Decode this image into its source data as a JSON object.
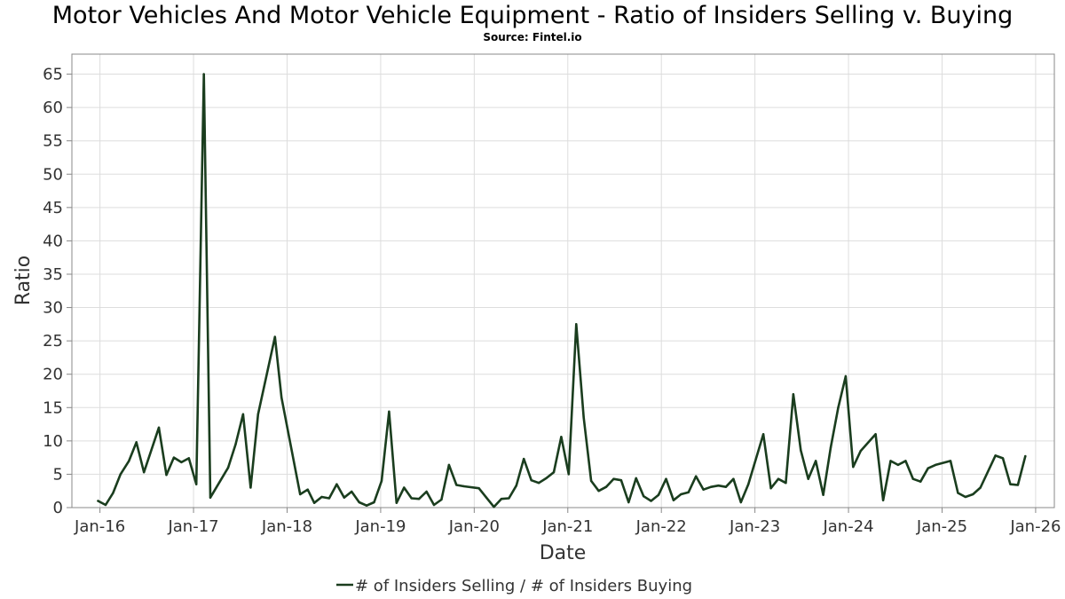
{
  "chart_data": {
    "type": "line",
    "title": "Motor Vehicles And Motor Vehicle Equipment - Ratio of Insiders Selling v. Buying",
    "subtitle": "Source: Fintel.io",
    "xlabel": "Date",
    "ylabel": "Ratio",
    "xlim": [
      2015.7,
      2026.2
    ],
    "ylim": [
      0,
      68
    ],
    "yticks": [
      0,
      5,
      10,
      15,
      20,
      25,
      30,
      35,
      40,
      45,
      50,
      55,
      60,
      65
    ],
    "xticks": [
      {
        "label": "Jan-16",
        "value": 2016.0
      },
      {
        "label": "Jan-17",
        "value": 2017.0
      },
      {
        "label": "Jan-18",
        "value": 2018.0
      },
      {
        "label": "Jan-19",
        "value": 2019.0
      },
      {
        "label": "Jan-20",
        "value": 2020.0
      },
      {
        "label": "Jan-21",
        "value": 2021.0
      },
      {
        "label": "Jan-22",
        "value": 2022.0
      },
      {
        "label": "Jan-23",
        "value": 2023.0
      },
      {
        "label": "Jan-24",
        "value": 2024.0
      },
      {
        "label": "Jan-25",
        "value": 2025.0
      },
      {
        "label": "Jan-26",
        "value": 2026.0
      }
    ],
    "grid": true,
    "legend_position": "bottom-center",
    "series": [
      {
        "name": "# of Insiders Selling / # of Insiders Buying",
        "color": "#1a3d1e",
        "x": [
          2015.98,
          2016.06,
          2016.14,
          2016.22,
          2016.31,
          2016.39,
          2016.47,
          2016.63,
          2016.71,
          2016.79,
          2016.87,
          2016.95,
          2017.03,
          2017.11,
          2017.18,
          2017.37,
          2017.45,
          2017.53,
          2017.61,
          2017.69,
          2017.87,
          2017.94,
          2018.14,
          2018.22,
          2018.29,
          2018.37,
          2018.45,
          2018.53,
          2018.61,
          2018.69,
          2018.77,
          2018.85,
          2018.93,
          2019.01,
          2019.09,
          2019.17,
          2019.25,
          2019.33,
          2019.41,
          2019.49,
          2019.57,
          2019.65,
          2019.73,
          2019.81,
          2019.89,
          2020.05,
          2020.13,
          2020.21,
          2020.29,
          2020.37,
          2020.45,
          2020.53,
          2020.61,
          2020.69,
          2020.77,
          2020.85,
          2020.93,
          2021.01,
          2021.09,
          2021.17,
          2021.25,
          2021.33,
          2021.41,
          2021.49,
          2021.57,
          2021.65,
          2021.73,
          2021.81,
          2021.89,
          2021.97,
          2022.05,
          2022.13,
          2022.21,
          2022.29,
          2022.37,
          2022.45,
          2022.53,
          2022.61,
          2022.69,
          2022.77,
          2022.85,
          2022.93,
          2023.09,
          2023.17,
          2023.25,
          2023.33,
          2023.41,
          2023.49,
          2023.57,
          2023.65,
          2023.73,
          2023.81,
          2023.89,
          2023.97,
          2024.05,
          2024.13,
          2024.29,
          2024.37,
          2024.45,
          2024.53,
          2024.61,
          2024.69,
          2024.77,
          2024.85,
          2024.93,
          2025.09,
          2025.17,
          2025.25,
          2025.33,
          2025.41,
          2025.57,
          2025.65,
          2025.73,
          2025.81,
          2025.89
        ],
        "y": [
          1.0,
          0.4,
          2.2,
          5.0,
          7.0,
          9.8,
          5.3,
          12.0,
          4.9,
          7.5,
          6.8,
          7.4,
          3.5,
          65.0,
          1.5,
          6.0,
          9.5,
          14.0,
          3.0,
          14.0,
          25.6,
          16.5,
          2.0,
          2.7,
          0.7,
          1.6,
          1.4,
          3.5,
          1.5,
          2.4,
          0.8,
          0.3,
          0.8,
          4.0,
          14.4,
          0.7,
          3.0,
          1.4,
          1.3,
          2.4,
          0.4,
          1.2,
          6.4,
          3.4,
          3.2,
          2.9,
          1.5,
          0.1,
          1.3,
          1.4,
          3.3,
          7.3,
          4.1,
          3.7,
          4.4,
          5.3,
          10.6,
          5.0,
          27.5,
          13.5,
          4.0,
          2.5,
          3.1,
          4.3,
          4.1,
          0.8,
          4.4,
          1.7,
          1.0,
          1.9,
          4.3,
          1.1,
          2.0,
          2.3,
          4.7,
          2.7,
          3.1,
          3.3,
          3.1,
          4.3,
          0.8,
          3.5,
          11.0,
          2.9,
          4.3,
          3.7,
          17.0,
          8.6,
          4.3,
          7.0,
          1.9,
          9.0,
          15.0,
          19.7,
          6.1,
          8.5,
          11.0,
          1.1,
          7.0,
          6.4,
          7.0,
          4.3,
          3.9,
          5.9,
          6.4,
          7.0,
          2.2,
          1.6,
          2.0,
          3.0,
          7.8,
          7.4,
          3.5,
          3.4,
          7.7
        ]
      }
    ]
  }
}
